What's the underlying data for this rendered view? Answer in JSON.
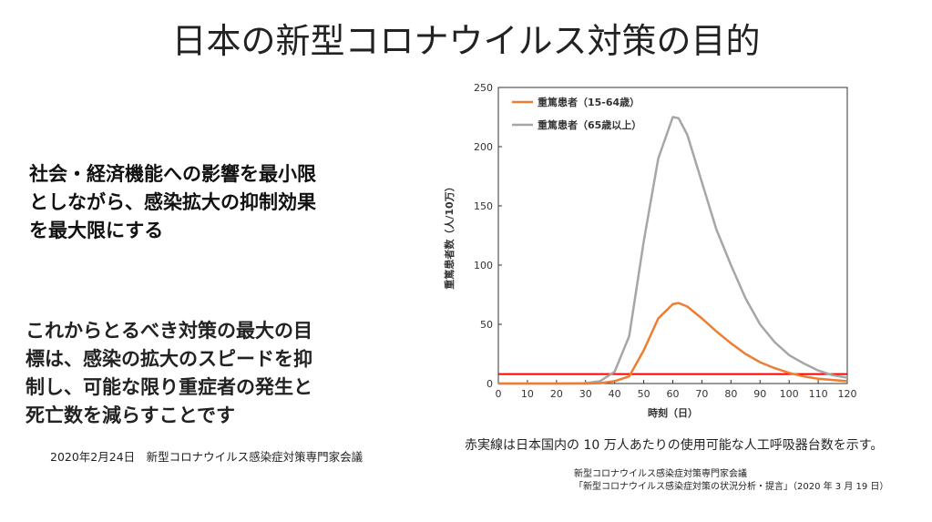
{
  "slide": {
    "title": "日本の新型コロナウイルス対策の目的",
    "lead_lines": [
      "社会・経済機能への影響を最小限",
      "としながら、感染拡大の抑制効果",
      "を最大限にする"
    ],
    "goal_lines": [
      "これからとるべき対策の最大の目",
      "標は、感染の拡大のスピードを抑",
      "制し、可能な限り重症者の発生と",
      "死亡数を減らすことです"
    ],
    "citation_left": "2020年2月24日　新型コロナウイルス感染症対策専門家会議",
    "chart_note": "赤実線は日本国内の 10 万人あたりの使用可能な人工呼吸器台数を示す。",
    "source_lines": [
      "新型コロナウイルス感染症対策専門家会議",
      "「新型コロナウイルス感染症対策の状況分析・提言」（2020 年 3 月 19 日）"
    ]
  },
  "chart_data": {
    "type": "line",
    "xlabel": "時刻（日）",
    "ylabel": "重篤患者数（人/10万）",
    "xlim": [
      0,
      120
    ],
    "ylim": [
      0,
      250
    ],
    "xticks": [
      0,
      10,
      20,
      30,
      40,
      50,
      60,
      70,
      80,
      90,
      100,
      110,
      120
    ],
    "yticks": [
      0,
      50,
      100,
      150,
      200,
      250
    ],
    "grid": false,
    "legend_position": "top-left",
    "x": [
      0,
      10,
      20,
      30,
      35,
      40,
      45,
      50,
      55,
      60,
      62,
      65,
      70,
      75,
      80,
      85,
      90,
      95,
      100,
      105,
      110,
      115,
      120
    ],
    "series": [
      {
        "name": "重篤患者（15-64歳）",
        "color": "#ed7d31",
        "values": [
          0,
          0,
          0,
          0,
          0.3,
          2,
          6,
          28,
          55,
          67,
          68,
          65,
          55,
          44,
          34,
          25,
          18,
          13,
          9,
          6,
          4,
          3,
          2
        ]
      },
      {
        "name": "重篤患者（65歳以上）",
        "color": "#a6a6a6",
        "values": [
          0,
          0,
          0,
          0.3,
          2,
          10,
          40,
          120,
          190,
          225,
          224,
          210,
          170,
          130,
          100,
          72,
          50,
          35,
          24,
          17,
          11,
          7,
          5
        ]
      }
    ],
    "reference_line": {
      "value": 8,
      "color": "#ff0000"
    }
  }
}
